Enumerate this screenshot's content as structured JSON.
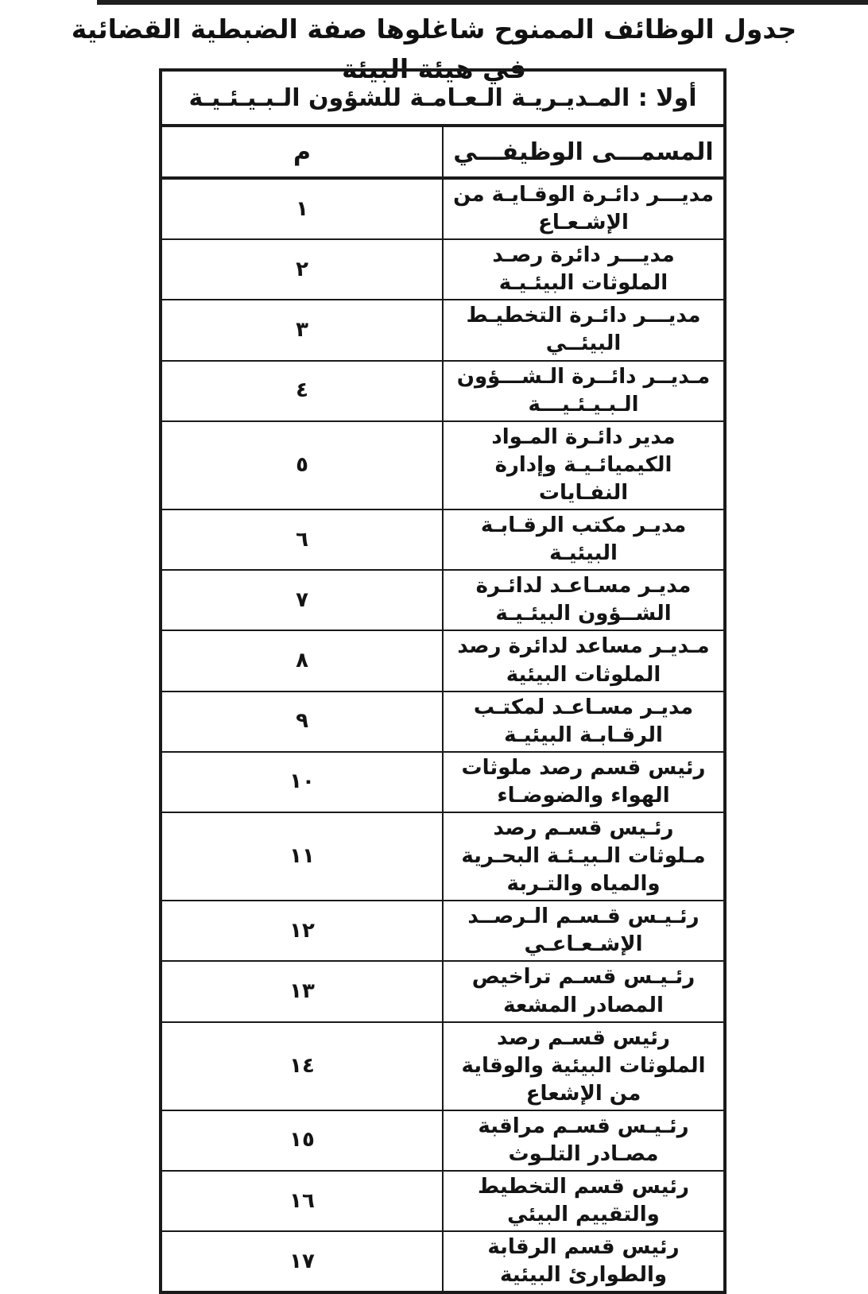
{
  "page": {
    "title": "جدول الوظائف الممنوح شاغلوها صفة الضبطية القضائية في هيئة البيئة"
  },
  "table": {
    "section_header": "أولا : المـديـريـة الـعـامـة للشؤون الـبـيـئـيـة",
    "columns": {
      "job_title": "المسمـــى الوظيفـــي",
      "num": "م"
    },
    "rows": [
      {
        "no": "١",
        "title": "مديـــر دائـرة الوقـايـة من الإشـعـاع"
      },
      {
        "no": "٢",
        "title": "مديـــر دائرة رصـد الملوثات البيئـيـة"
      },
      {
        "no": "٣",
        "title": "مديـــر دائـرة التخطيـط البيئــي"
      },
      {
        "no": "٤",
        "title": "مـديــر دائــرة الـشـــؤون الـبـيـئـيـــة"
      },
      {
        "no": "٥",
        "title": "مدير دائـرة المـواد الكيميائـيـة وإدارة النفـايات"
      },
      {
        "no": "٦",
        "title": "مديـر مكتب الرقـابـة البيئيـة"
      },
      {
        "no": "٧",
        "title": "مديـر مسـاعـد لدائـرة الشــؤون البيئـيـة"
      },
      {
        "no": "٨",
        "title": "مـديـر مساعد لدائرة رصد الملوثات البيئية"
      },
      {
        "no": "٩",
        "title": "مديـر مسـاعـد لمكتـب الرقـابـة البيئيـة"
      },
      {
        "no": "١٠",
        "title": "رئيس قسم رصد ملوثات الهواء والضوضـاء"
      },
      {
        "no": "١١",
        "title": "رئـيس قسـم رصد مـلوثات الـبيـئـة البحـرية والمياه والتـربة"
      },
      {
        "no": "١٢",
        "title": "رئـيـس قـسـم الـرصــد الإشـعـاعـي"
      },
      {
        "no": "١٣",
        "title": "رئـيـس قسـم تراخيص المصادر المشعة"
      },
      {
        "no": "١٤",
        "title": "رئيس قسـم رصد الملوثات البيئية والوقاية من الإشعاع"
      },
      {
        "no": "١٥",
        "title": "رئـيـس قسـم مراقبة مصـادر التلـوث"
      },
      {
        "no": "١٦",
        "title": "رئيس قسم التخطيط والتقييم البيئي"
      },
      {
        "no": "١٧",
        "title": "رئيس قسم الرقابة والطوارئ البيئية"
      }
    ]
  }
}
